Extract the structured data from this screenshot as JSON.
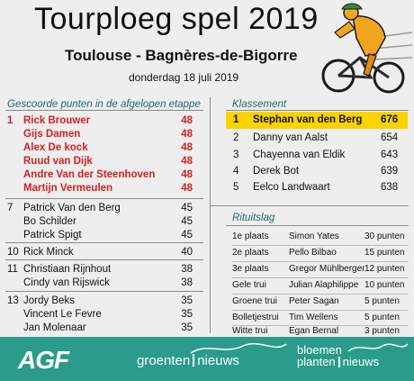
{
  "header": {
    "title": "Tourploeg spel 2019",
    "route": "Toulouse - Bagnères-de-Bigorre",
    "date": "donderdag 18 juli 2019"
  },
  "stage_points": {
    "title": "Gescoorde punten in de afgelopen etappe",
    "rows": [
      {
        "rank": "1",
        "name": "Rick Brouwer",
        "points": "48",
        "highlight": true
      },
      {
        "rank": "",
        "name": "Gijs Damen",
        "points": "48",
        "highlight": true
      },
      {
        "rank": "",
        "name": "Alex De kock",
        "points": "48",
        "highlight": true
      },
      {
        "rank": "",
        "name": "Ruud van Dijk",
        "points": "48",
        "highlight": true
      },
      {
        "rank": "",
        "name": "Andre Van der Steenhoven",
        "points": "48",
        "highlight": true
      },
      {
        "rank": "",
        "name": "Martijn Vermeulen",
        "points": "48",
        "highlight": true
      },
      {
        "rank": "7",
        "name": "Patrick Van den Berg",
        "points": "45",
        "highlight": false
      },
      {
        "rank": "",
        "name": "Bo Schilder",
        "points": "45",
        "highlight": false
      },
      {
        "rank": "",
        "name": "Patrick Spigt",
        "points": "45",
        "highlight": false
      },
      {
        "rank": "10",
        "name": "Rick Minck",
        "points": "40",
        "highlight": false
      },
      {
        "rank": "11",
        "name": "Christiaan Rijnhout",
        "points": "38",
        "highlight": false
      },
      {
        "rank": "",
        "name": "Cindy van Rijswick",
        "points": "38",
        "highlight": false
      },
      {
        "rank": "13",
        "name": "Jordy Beks",
        "points": "35",
        "highlight": false
      },
      {
        "rank": "",
        "name": "Vincent Le Fevre",
        "points": "35",
        "highlight": false
      },
      {
        "rank": "",
        "name": "Jan Molenaar",
        "points": "35",
        "highlight": false
      }
    ]
  },
  "klassement": {
    "title": "Klassement",
    "rows": [
      {
        "rank": "1",
        "name": "Stephan van den Berg",
        "points": "676",
        "highlight": true
      },
      {
        "rank": "2",
        "name": "Danny van Aalst",
        "points": "654",
        "highlight": false
      },
      {
        "rank": "3",
        "name": "Chayenna van Eldik",
        "points": "643",
        "highlight": false
      },
      {
        "rank": "4",
        "name": "Derek Bot",
        "points": "639",
        "highlight": false
      },
      {
        "rank": "5",
        "name": "Eelco Landwaart",
        "points": "638",
        "highlight": false
      }
    ]
  },
  "rituitslag": {
    "title": "Rituitslag",
    "rows": [
      {
        "place": "1e plaats",
        "rider": "Simon Yates",
        "points": "30 punten"
      },
      {
        "place": "2e plaats",
        "rider": "Pello Bilbao",
        "points": "15 punten"
      },
      {
        "place": "3e plaats",
        "rider": "Gregor Mühlberger",
        "points": "12 punten"
      },
      {
        "place": "Gele trui",
        "rider": "Julian Alaphilippe",
        "points": "10 punten"
      },
      {
        "place": "Groene trui",
        "rider": "Peter Sagan",
        "points": "5 punten"
      },
      {
        "place": "Bolletjestrui",
        "rider": "Tim Wellens",
        "points": "5 punten"
      },
      {
        "place": "Witte trui",
        "rider": "Egan Bernal",
        "points": "3 punten"
      }
    ]
  },
  "footer": {
    "logos": [
      "AGF",
      "groenten nieuws",
      "bloemen planten nieuws"
    ],
    "agf": "AGF",
    "groenten": "groenten",
    "nieuws1": "nieuws",
    "bloemen": "bloemen",
    "planten": "planten",
    "nieuws2": "nieuws"
  },
  "colors": {
    "accent": "#2b9b8c",
    "highlight": "#fbd300",
    "red": "#d62020",
    "section_title": "#1f6b6b"
  },
  "icons": [
    "cyclist-illustration"
  ]
}
